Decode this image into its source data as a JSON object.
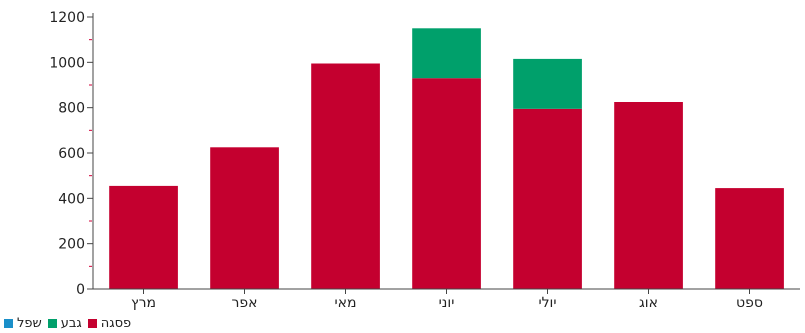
{
  "chart_data": {
    "type": "bar",
    "stacked": true,
    "categories": [
      "מרץ",
      "אפר",
      "מאי",
      "יוני",
      "יולי",
      "אוג",
      "ספט"
    ],
    "series": [
      {
        "name": "פסגה",
        "color": "#c4002f",
        "values": [
          455,
          625,
          995,
          930,
          795,
          825,
          445
        ]
      },
      {
        "name": "גבע",
        "color": "#00a06b",
        "values": [
          0,
          0,
          0,
          220,
          220,
          0,
          0
        ]
      },
      {
        "name": "שפל",
        "color": "#1a8fc9",
        "values": [
          0,
          0,
          0,
          0,
          0,
          0,
          0
        ]
      }
    ],
    "yticks": [
      "0",
      "200",
      "400",
      "600",
      "800",
      "1000",
      "1200"
    ],
    "ylim": [
      0,
      1200
    ],
    "legend_position": "bottom-left",
    "grid": false
  }
}
